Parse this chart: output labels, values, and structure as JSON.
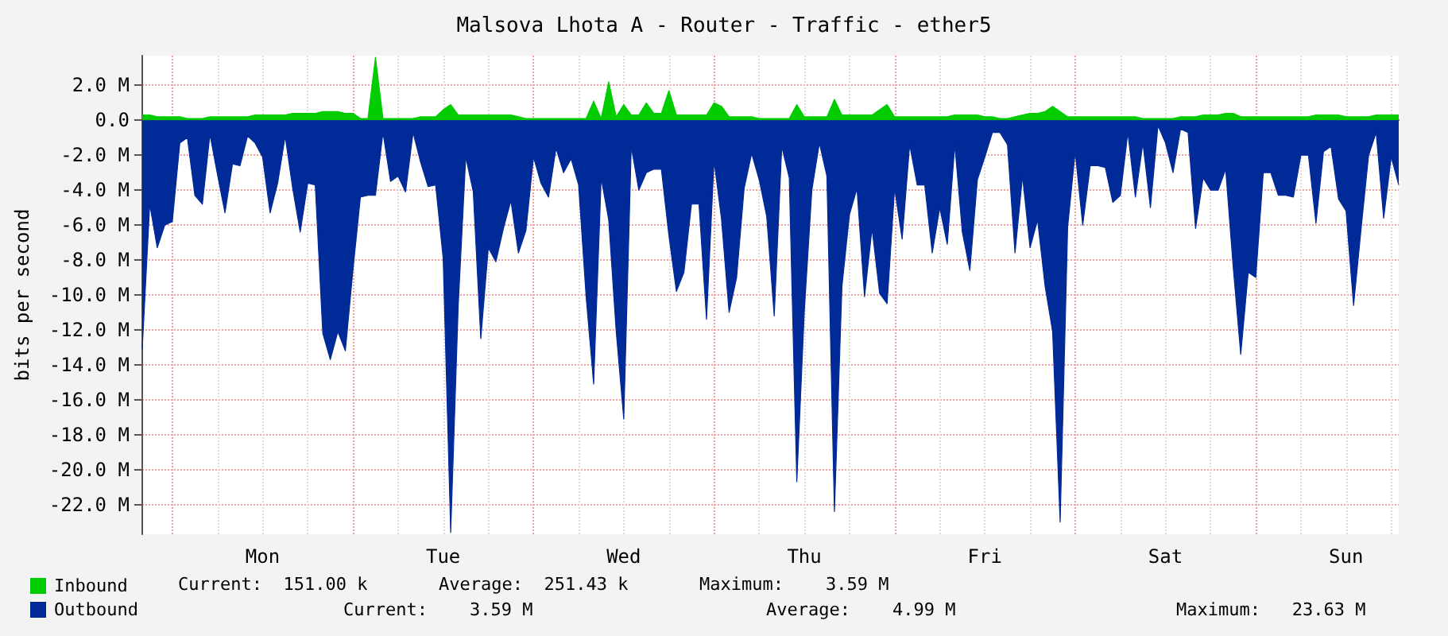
{
  "chart_data": {
    "type": "area",
    "title": "Malsova Lhota A - Router - Traffic - ether5",
    "ylabel": "bits per second",
    "categories": [
      null,
      null,
      null,
      null,
      null,
      null,
      null,
      null,
      null,
      null,
      null,
      null,
      null,
      null,
      null,
      null,
      "Mon",
      null,
      null,
      null,
      null,
      null,
      null,
      null,
      null,
      null,
      null,
      null,
      null,
      null,
      null,
      null,
      null,
      null,
      null,
      null,
      null,
      null,
      null,
      null,
      "Tue",
      null,
      null,
      null,
      null,
      null,
      null,
      null,
      null,
      null,
      null,
      null,
      null,
      null,
      null,
      null,
      null,
      null,
      null,
      null,
      null,
      null,
      null,
      null,
      "Wed",
      null,
      null,
      null,
      null,
      null,
      null,
      null,
      null,
      null,
      null,
      null,
      null,
      null,
      null,
      null,
      null,
      null,
      null,
      null,
      null,
      null,
      null,
      null,
      "Thu",
      null,
      null,
      null,
      null,
      null,
      null,
      null,
      null,
      null,
      null,
      null,
      null,
      null,
      null,
      null,
      null,
      null,
      null,
      null,
      null,
      null,
      null,
      null,
      "Fri",
      null,
      null,
      null,
      null,
      null,
      null,
      null,
      null,
      null,
      null,
      null,
      null,
      null,
      null,
      null,
      null,
      null,
      null,
      null,
      null,
      null,
      null,
      null,
      "Sat",
      null,
      null,
      null,
      null,
      null,
      null,
      null,
      null,
      null,
      null,
      null,
      null,
      null,
      null,
      null,
      null,
      null,
      null,
      null,
      null,
      null,
      null,
      null,
      "Sun",
      null,
      null,
      null,
      null,
      null,
      null,
      null
    ],
    "ylim": [
      -23.7,
      3.7
    ],
    "yticks": [
      {
        "value": 2,
        "label": "2.0 M"
      },
      {
        "value": 0,
        "label": "0.0"
      },
      {
        "value": -2,
        "label": "-2.0 M"
      },
      {
        "value": -4,
        "label": "-4.0 M"
      },
      {
        "value": -6,
        "label": "-6.0 M"
      },
      {
        "value": -8,
        "label": "-8.0 M"
      },
      {
        "value": -10,
        "label": "-10.0 M"
      },
      {
        "value": -12,
        "label": "-12.0 M"
      },
      {
        "value": -14,
        "label": "-14.0 M"
      },
      {
        "value": -16,
        "label": "-16.0 M"
      },
      {
        "value": -18,
        "label": "-18.0 M"
      },
      {
        "value": -20,
        "label": "-20.0 M"
      },
      {
        "value": -22,
        "label": "-22.0 M"
      }
    ],
    "grid": true,
    "legend": "bottom left",
    "marker": "none",
    "series": [
      {
        "name": "Inbound",
        "color": "#00cc00",
        "values": [
          0.3,
          0.3,
          0.2,
          0.2,
          0.2,
          0.2,
          0.1,
          0.1,
          0.1,
          0.2,
          0.2,
          0.2,
          0.2,
          0.2,
          0.2,
          0.3,
          0.3,
          0.3,
          0.3,
          0.3,
          0.4,
          0.4,
          0.4,
          0.4,
          0.5,
          0.5,
          0.5,
          0.4,
          0.4,
          0.1,
          0.1,
          3.6,
          0.1,
          0.1,
          0.1,
          0.1,
          0.1,
          0.2,
          0.2,
          0.2,
          0.6,
          0.9,
          0.3,
          0.3,
          0.3,
          0.3,
          0.3,
          0.3,
          0.3,
          0.3,
          0.2,
          0.1,
          0.1,
          0.1,
          0.1,
          0.1,
          0.1,
          0.1,
          0.1,
          0.1,
          1.1,
          0.1,
          2.2,
          0.2,
          0.9,
          0.3,
          0.3,
          1.0,
          0.4,
          0.4,
          1.7,
          0.3,
          0.3,
          0.3,
          0.3,
          0.3,
          1.0,
          0.8,
          0.2,
          0.2,
          0.2,
          0.2,
          0.1,
          0.1,
          0.1,
          0.1,
          0.1,
          0.9,
          0.2,
          0.2,
          0.2,
          0.2,
          1.2,
          0.3,
          0.3,
          0.3,
          0.3,
          0.3,
          0.6,
          0.9,
          0.2,
          0.2,
          0.2,
          0.2,
          0.2,
          0.2,
          0.2,
          0.2,
          0.3,
          0.3,
          0.3,
          0.3,
          0.2,
          0.2,
          0.1,
          0.1,
          0.2,
          0.3,
          0.4,
          0.4,
          0.5,
          0.8,
          0.5,
          0.2,
          0.2,
          0.2,
          0.2,
          0.2,
          0.2,
          0.2,
          0.2,
          0.2,
          0.2,
          0.1,
          0.1,
          0.1,
          0.1,
          0.1,
          0.2,
          0.2,
          0.2,
          0.3,
          0.3,
          0.3,
          0.4,
          0.4,
          0.2,
          0.2,
          0.2,
          0.2,
          0.2,
          0.2,
          0.2,
          0.2,
          0.2,
          0.2,
          0.3,
          0.3,
          0.3,
          0.3,
          0.2,
          0.2,
          0.2,
          0.2,
          0.3,
          0.3,
          0.3,
          0.3
        ]
      },
      {
        "name": "Outbound",
        "color": "#002a97",
        "values": [
          -13.1,
          -4.8,
          -7.3,
          -6.0,
          -5.8,
          -1.3,
          -1.0,
          -4.3,
          -4.8,
          -0.8,
          -3.1,
          -5.3,
          -2.5,
          -2.6,
          -0.9,
          -1.3,
          -2.1,
          -5.3,
          -3.6,
          -0.9,
          -3.9,
          -6.4,
          -3.6,
          -3.7,
          -12.2,
          -13.7,
          -12.1,
          -13.2,
          -8.6,
          -4.4,
          -4.3,
          -4.3,
          -0.7,
          -3.5,
          -3.2,
          -4.1,
          -0.7,
          -2.4,
          -3.8,
          -3.7,
          -7.9,
          -23.6,
          -10.6,
          -2.1,
          -4.1,
          -12.5,
          -7.3,
          -8.1,
          -6.2,
          -4.6,
          -7.6,
          -6.3,
          -2.1,
          -3.6,
          -4.4,
          -1.6,
          -3.0,
          -2.2,
          -3.7,
          -10.1,
          -15.1,
          -3.3,
          -5.7,
          -12.1,
          -17.1,
          -1.5,
          -4.0,
          -3.0,
          -2.8,
          -2.8,
          -6.6,
          -9.8,
          -8.7,
          -4.8,
          -4.8,
          -11.4,
          -2.3,
          -5.7,
          -11.0,
          -9.0,
          -3.9,
          -1.9,
          -3.4,
          -5.5,
          -11.2,
          -1.5,
          -3.3,
          -20.7,
          -10.9,
          -4.0,
          -1.3,
          -3.2,
          -22.4,
          -9.5,
          -5.4,
          -3.9,
          -10.1,
          -6.2,
          -9.9,
          -10.5,
          -3.9,
          -6.8,
          -1.4,
          -3.7,
          -3.7,
          -7.6,
          -5.0,
          -7.1,
          -1.4,
          -6.4,
          -8.6,
          -3.4,
          -2.1,
          -0.7,
          -0.7,
          -1.4,
          -7.6,
          -3.2,
          -7.3,
          -5.7,
          -9.5,
          -12.1,
          -23.0,
          -6.1,
          -1.8,
          -6.0,
          -2.6,
          -2.6,
          -2.7,
          -4.7,
          -4.3,
          -0.7,
          -4.4,
          -1.3,
          -5.0,
          -0.3,
          -1.3,
          -3.0,
          -0.5,
          -0.7,
          -6.2,
          -3.3,
          -4.0,
          -4.0,
          -2.8,
          -8.4,
          -13.4,
          -8.7,
          -9.0,
          -3.0,
          -3.0,
          -4.3,
          -4.3,
          -4.4,
          -2.0,
          -2.0,
          -5.9,
          -1.8,
          -1.5,
          -4.5,
          -5.2,
          -10.6,
          -6.2,
          -2.0,
          -0.7,
          -5.6,
          -2.1,
          -3.7
        ]
      }
    ],
    "annotations": [
      "Current:  151.00 k",
      "Average:  251.43 k",
      "Maximum:    3.59 M",
      "Current:    3.59 M",
      "Average:    4.99 M",
      "Maximum:   23.63 M"
    ]
  }
}
